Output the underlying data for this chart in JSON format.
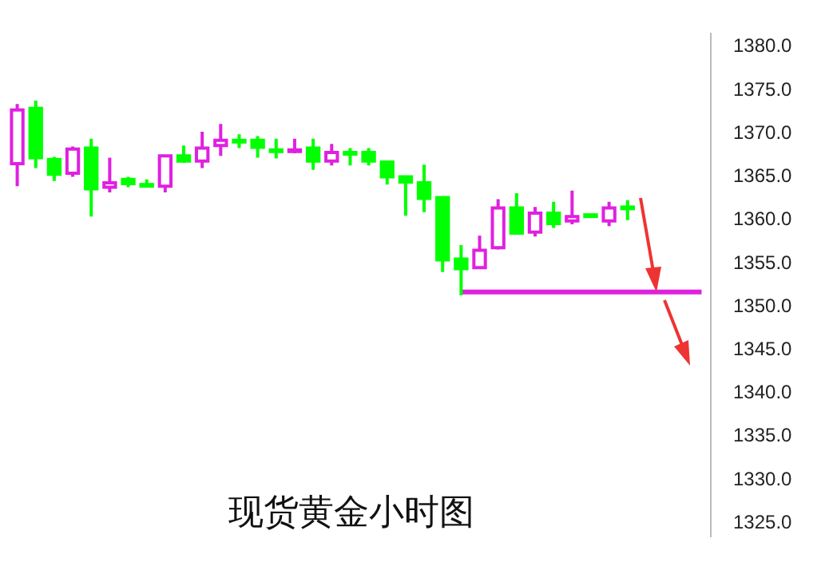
{
  "chart_data": {
    "type": "candlestick",
    "title": "现货黄金小时图",
    "categories": [
      null,
      null,
      null,
      null,
      null,
      null,
      null,
      null,
      null,
      null,
      null,
      null,
      null,
      null,
      null,
      null,
      null,
      null,
      null,
      null,
      null,
      null,
      null,
      null,
      null,
      null,
      null,
      null,
      null,
      null,
      null,
      null,
      null,
      null,
      null,
      null,
      null,
      null
    ],
    "ohlc": [
      [
        1366.5,
        1373.4,
        1363.9,
        1372.7
      ],
      [
        1372.9,
        1373.8,
        1366.0,
        1367.2
      ],
      [
        1367.0,
        1367.3,
        1364.5,
        1365.3
      ],
      [
        1365.4,
        1368.5,
        1365.0,
        1368.2
      ],
      [
        1368.3,
        1369.4,
        1360.4,
        1363.6
      ],
      [
        1363.8,
        1367.2,
        1363.2,
        1364.3
      ],
      [
        1364.7,
        1365.0,
        1363.8,
        1364.2
      ],
      [
        1364.1,
        1364.7,
        1364.1,
        1364.1
      ],
      [
        1363.9,
        1367.5,
        1363.2,
        1367.4
      ],
      [
        1367.4,
        1368.6,
        1366.6,
        1366.8
      ],
      [
        1366.8,
        1370.2,
        1366.0,
        1368.3
      ],
      [
        1368.6,
        1371.1,
        1367.4,
        1369.2
      ],
      [
        1369.2,
        1369.9,
        1368.3,
        1369.2
      ],
      [
        1369.2,
        1369.7,
        1367.2,
        1368.4
      ],
      [
        1368.1,
        1369.4,
        1367.1,
        1368.1
      ],
      [
        1368.1,
        1369.4,
        1367.7,
        1368.1
      ],
      [
        1368.3,
        1369.4,
        1365.8,
        1366.8
      ],
      [
        1366.8,
        1368.8,
        1366.3,
        1367.8
      ],
      [
        1367.8,
        1368.3,
        1366.3,
        1367.8
      ],
      [
        1367.8,
        1368.3,
        1366.3,
        1366.8
      ],
      [
        1366.7,
        1366.7,
        1364.1,
        1365.0
      ],
      [
        1365.0,
        1365.1,
        1360.5,
        1364.4
      ],
      [
        1364.3,
        1366.4,
        1360.9,
        1362.5
      ],
      [
        1362.6,
        1362.6,
        1354.0,
        1355.4
      ],
      [
        1355.5,
        1357.1,
        1351.3,
        1354.4
      ],
      [
        1354.5,
        1358.2,
        1354.5,
        1356.5
      ],
      [
        1356.8,
        1362.4,
        1356.6,
        1361.4
      ],
      [
        1361.4,
        1363.1,
        1358.3,
        1358.5
      ],
      [
        1358.6,
        1361.5,
        1358.1,
        1360.8
      ],
      [
        1360.8,
        1362.1,
        1359.1,
        1359.6
      ],
      [
        1359.9,
        1363.4,
        1359.5,
        1360.4
      ],
      [
        1360.6,
        1360.6,
        1360.6,
        1360.6
      ],
      [
        1359.9,
        1362.1,
        1359.3,
        1361.4
      ],
      [
        1361.5,
        1362.3,
        1360.0,
        1361.4
      ],
      null,
      null,
      null,
      null
    ],
    "colors": [
      "#e020e0",
      "#00ff00",
      "#00ff00",
      "#e020e0",
      "#00ff00",
      "#e020e0",
      "#00ff00",
      "#00ff00",
      "#e020e0",
      "#00ff00",
      "#e020e0",
      "#e020e0",
      "#00ff00",
      "#00ff00",
      "#00ff00",
      "#e020e0",
      "#00ff00",
      "#e020e0",
      "#00ff00",
      "#00ff00",
      "#00ff00",
      "#00ff00",
      "#00ff00",
      "#00ff00",
      "#00ff00",
      "#e020e0",
      "#e020e0",
      "#00ff00",
      "#e020e0",
      "#00ff00",
      "#e020e0",
      "#00ff00",
      "#e020e0",
      "#00ff00",
      null,
      null,
      null,
      null
    ],
    "series": [
      {
        "type": "line",
        "color": "#e020e0",
        "values": [
          null,
          null,
          null,
          null,
          null,
          null,
          null,
          null,
          null,
          null,
          null,
          null,
          null,
          null,
          null,
          null,
          null,
          null,
          null,
          null,
          null,
          null,
          null,
          null,
          1351.7,
          1351.7,
          1351.7,
          1351.7,
          1351.7,
          1351.7,
          1351.7,
          1351.7,
          1351.7,
          1351.7,
          1351.7,
          1351.7,
          1351.7,
          1351.7
        ]
      }
    ],
    "marker": "none",
    "ylim": [
      1323.5,
      1381.5
    ],
    "yticks": [
      {
        "value": 1325,
        "label": "1325.0"
      },
      {
        "value": 1330,
        "label": "1330.0"
      },
      {
        "value": 1335,
        "label": "1335.0"
      },
      {
        "value": 1340,
        "label": "1340.0"
      },
      {
        "value": 1345,
        "label": "1345.0"
      },
      {
        "value": 1350,
        "label": "1350.0"
      },
      {
        "value": 1355,
        "label": "1355.0"
      },
      {
        "value": 1360,
        "label": "1360.0"
      },
      {
        "value": 1365,
        "label": "1365.0"
      },
      {
        "value": 1370,
        "label": "1370.0"
      },
      {
        "value": 1375,
        "label": "1375.0"
      },
      {
        "value": 1380,
        "label": "1380.0"
      }
    ],
    "tick_labels": "y",
    "grid": false,
    "legend": false
  }
}
